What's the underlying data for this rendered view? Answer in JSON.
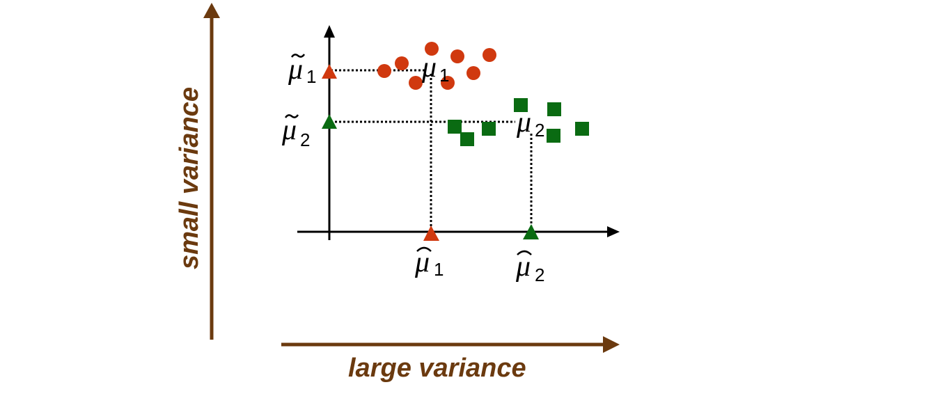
{
  "labels": {
    "vertical_arrow": "small variance",
    "horizontal_arrow": "large variance"
  },
  "mu_labels": {
    "symbol": "μ",
    "tilde_mu1_sub": "1",
    "tilde_mu2_sub": "2",
    "mu1_sub": "1",
    "mu2_sub": "2",
    "hat_mu1_sub": "1",
    "hat_mu2_sub": "2"
  },
  "colors": {
    "arrow_brown": "#6b3a0f",
    "class1_red": "#d0390f",
    "class2_green": "#0a6b12",
    "axis_black": "#000000"
  },
  "markers": {
    "class1_shape": "circle",
    "class2_shape": "square",
    "projection_shape": "triangle"
  }
}
